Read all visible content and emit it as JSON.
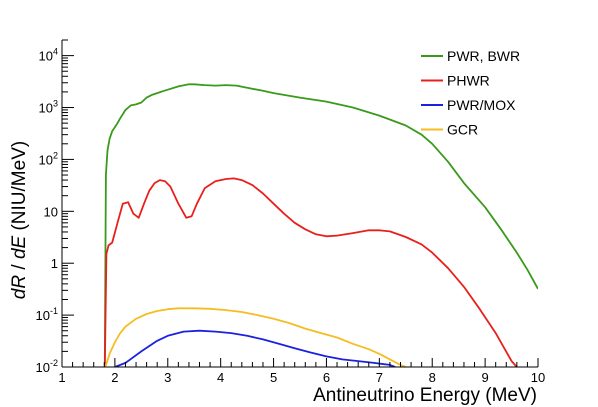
{
  "chart_data": {
    "type": "line",
    "title": "",
    "xlabel": "Antineutrino Energy (MeV)",
    "ylabel_parts": {
      "var1": "dR",
      "sep": " / ",
      "var2": "dE",
      "unit": " (NIU/MeV)"
    },
    "xlim": [
      1,
      10
    ],
    "ylim": [
      0.01,
      20000
    ],
    "yscale": "log",
    "grid": false,
    "legend_position": "top-right",
    "x_ticks": [
      "1",
      "2",
      "3",
      "4",
      "5",
      "6",
      "7",
      "8",
      "9",
      "10"
    ],
    "y_ticks": [
      {
        "value": 0.01,
        "base": "10",
        "exp": "-2"
      },
      {
        "value": 0.1,
        "base": "10",
        "exp": "-1"
      },
      {
        "value": 1,
        "text": "1"
      },
      {
        "value": 10,
        "text": "10"
      },
      {
        "value": 100,
        "base": "10",
        "exp": "2"
      },
      {
        "value": 1000,
        "base": "10",
        "exp": "3"
      },
      {
        "value": 10000,
        "base": "10",
        "exp": "4"
      }
    ],
    "series": [
      {
        "name": "PWR, BWR",
        "color": "#3a9a1c",
        "x": [
          1.81,
          1.83,
          1.86,
          1.9,
          1.95,
          2.0,
          2.05,
          2.1,
          2.2,
          2.3,
          2.4,
          2.5,
          2.6,
          2.7,
          2.8,
          2.9,
          3.0,
          3.2,
          3.4,
          3.5,
          3.7,
          3.9,
          4.1,
          4.3,
          4.5,
          4.8,
          5.0,
          5.5,
          6.0,
          6.5,
          7.0,
          7.5,
          7.8,
          8.0,
          8.3,
          8.6,
          9.0,
          9.3,
          9.6,
          9.8,
          10.0
        ],
        "y": [
          0.01,
          50,
          150,
          250,
          350,
          420,
          500,
          620,
          900,
          1100,
          1150,
          1250,
          1550,
          1750,
          1900,
          2050,
          2200,
          2550,
          2800,
          2800,
          2700,
          2650,
          2700,
          2650,
          2400,
          2100,
          1900,
          1550,
          1300,
          1000,
          700,
          450,
          300,
          200,
          90,
          35,
          12,
          4.5,
          1.6,
          0.75,
          0.32
        ]
      },
      {
        "name": "PHWR",
        "color": "#e8201c",
        "x": [
          1.81,
          1.84,
          1.88,
          1.95,
          2.05,
          2.15,
          2.25,
          2.35,
          2.45,
          2.55,
          2.65,
          2.75,
          2.85,
          2.95,
          3.05,
          3.2,
          3.35,
          3.45,
          3.55,
          3.7,
          3.9,
          4.1,
          4.25,
          4.4,
          4.6,
          4.8,
          5.0,
          5.2,
          5.4,
          5.6,
          5.8,
          6.0,
          6.2,
          6.5,
          6.8,
          7.0,
          7.2,
          7.5,
          7.8,
          8.0,
          8.3,
          8.6,
          8.9,
          9.2,
          9.5,
          9.6
        ],
        "y": [
          0.01,
          1.5,
          2.2,
          2.5,
          6,
          14,
          15,
          9,
          7.5,
          14,
          25,
          35,
          40,
          38,
          30,
          14,
          7.5,
          8,
          14,
          28,
          38,
          42,
          43,
          40,
          32,
          22,
          14,
          9,
          6,
          4.5,
          3.6,
          3.3,
          3.4,
          3.8,
          4.3,
          4.3,
          4.1,
          3.2,
          2.3,
          1.6,
          0.8,
          0.35,
          0.13,
          0.045,
          0.013,
          0.01
        ]
      },
      {
        "name": "PWR/MOX",
        "color": "#1a22e0",
        "x": [
          2.0,
          2.2,
          2.5,
          2.8,
          3.0,
          3.3,
          3.6,
          3.9,
          4.2,
          4.5,
          4.8,
          5.1,
          5.4,
          5.7,
          6.0,
          6.3,
          6.6,
          6.9,
          7.2,
          7.3
        ],
        "y": [
          0.01,
          0.012,
          0.02,
          0.032,
          0.04,
          0.048,
          0.05,
          0.048,
          0.045,
          0.04,
          0.034,
          0.028,
          0.023,
          0.019,
          0.016,
          0.014,
          0.013,
          0.012,
          0.011,
          0.01
        ]
      },
      {
        "name": "GCR",
        "color": "#f5bd22",
        "x": [
          1.82,
          1.9,
          2.0,
          2.1,
          2.2,
          2.4,
          2.6,
          2.8,
          3.0,
          3.2,
          3.5,
          3.8,
          4.1,
          4.4,
          4.7,
          5.0,
          5.3,
          5.6,
          5.9,
          6.2,
          6.5,
          6.8,
          7.0,
          7.2,
          7.4,
          7.5
        ],
        "y": [
          0.01,
          0.018,
          0.03,
          0.045,
          0.06,
          0.085,
          0.105,
          0.12,
          0.13,
          0.135,
          0.135,
          0.132,
          0.125,
          0.115,
          0.1,
          0.085,
          0.07,
          0.055,
          0.045,
          0.037,
          0.028,
          0.022,
          0.018,
          0.014,
          0.011,
          0.01
        ]
      }
    ]
  }
}
